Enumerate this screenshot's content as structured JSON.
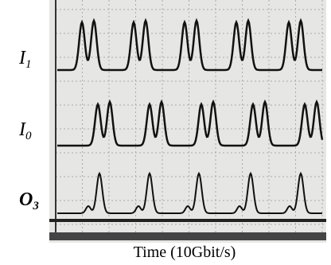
{
  "traces": [
    {
      "letter": "I",
      "subscript": "1"
    },
    {
      "letter": "I",
      "subscript": "0"
    },
    {
      "letter": "O",
      "subscript": "3"
    }
  ],
  "caption": "Time (10Gbit/s)"
}
